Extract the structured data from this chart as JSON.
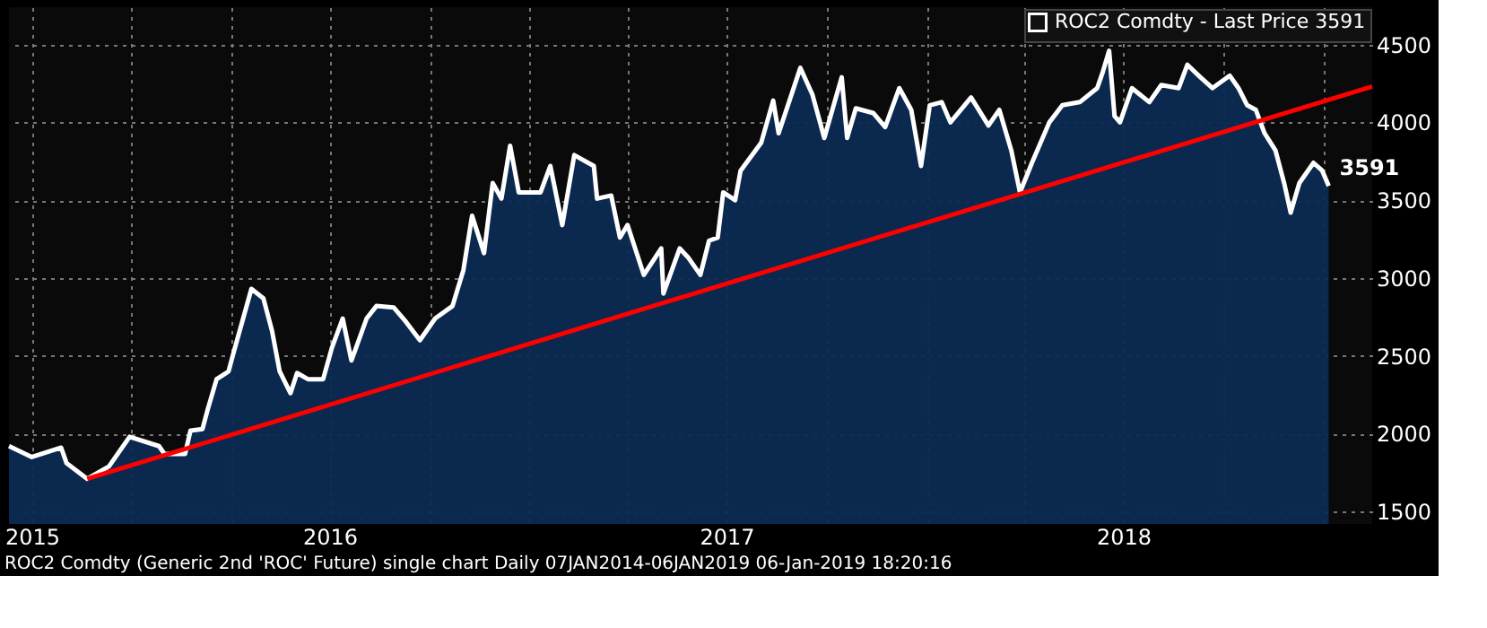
{
  "chart_data": {
    "type": "area",
    "xlim": [
      "2015-09-10",
      "2019-02-15"
    ],
    "ylim": [
      1420,
      4740
    ],
    "yticks": [
      1500,
      2000,
      2500,
      3000,
      3500,
      4000,
      4500
    ],
    "xticks": [
      {
        "value": "2015-10-01",
        "label": "2015"
      },
      {
        "value": "2016-01-01",
        "label": null
      },
      {
        "value": "2016-04-01",
        "label": null
      },
      {
        "value": "2016-07-01",
        "label": "2016"
      },
      {
        "value": "2016-10-01",
        "label": null
      },
      {
        "value": "2017-01-01",
        "label": null
      },
      {
        "value": "2017-04-01",
        "label": null
      },
      {
        "value": "2017-07-01",
        "label": "2017"
      },
      {
        "value": "2017-10-01",
        "label": null
      },
      {
        "value": "2018-01-01",
        "label": null
      },
      {
        "value": "2018-04-01",
        "label": null
      },
      {
        "value": "2018-07-01",
        "label": "2018"
      },
      {
        "value": "2018-10-01",
        "label": null
      },
      {
        "value": "2019-01-01",
        "label": null
      }
    ],
    "grid": true,
    "legend": "top right",
    "series": [
      {
        "name": "ROC2 Comdty - Last Price 3591",
        "color": "#ffffff",
        "x": [
          "2015-09-10",
          "2015-10-01",
          "2015-10-28",
          "2015-11-02",
          "2015-11-21",
          "2015-12-11",
          "2015-12-30",
          "2016-01-26",
          "2016-01-31",
          "2016-02-19",
          "2016-02-24",
          "2016-03-06",
          "2016-03-11",
          "2016-03-19",
          "2016-03-30",
          "2016-04-04",
          "2016-04-20",
          "2016-05-01",
          "2016-05-09",
          "2016-05-16",
          "2016-05-26",
          "2016-06-01",
          "2016-06-11",
          "2016-06-25",
          "2016-07-03",
          "2016-07-13",
          "2016-07-21",
          "2016-08-04",
          "2016-08-13",
          "2016-08-29",
          "2016-09-09",
          "2016-09-22",
          "2016-10-06",
          "2016-10-22",
          "2016-11-01",
          "2016-11-09",
          "2016-11-20",
          "2016-11-28",
          "2016-12-06",
          "2016-12-14",
          "2016-12-22",
          "2017-01-11",
          "2017-01-20",
          "2017-01-31",
          "2017-02-11",
          "2017-03-01",
          "2017-03-04",
          "2017-03-17",
          "2017-03-25",
          "2017-04-01",
          "2017-04-16",
          "2017-05-02",
          "2017-05-04",
          "2017-05-19",
          "2017-05-27",
          "2017-06-07",
          "2017-06-15",
          "2017-06-23",
          "2017-06-28",
          "2017-07-09",
          "2017-07-14",
          "2017-08-02",
          "2017-08-13",
          "2017-08-18",
          "2017-09-07",
          "2017-09-18",
          "2017-09-29",
          "2017-10-15",
          "2017-10-20",
          "2017-10-28",
          "2017-11-13",
          "2017-11-24",
          "2017-12-07",
          "2017-12-18",
          "2017-12-27",
          "2018-01-04",
          "2018-01-15",
          "2018-01-23",
          "2018-02-11",
          "2018-02-27",
          "2018-03-09",
          "2018-03-20",
          "2018-03-28",
          "2018-04-08",
          "2018-04-24",
          "2018-05-06",
          "2018-05-22",
          "2018-06-07",
          "2018-06-12",
          "2018-06-18",
          "2018-06-23",
          "2018-06-28",
          "2018-07-09",
          "2018-07-25",
          "2018-08-05",
          "2018-08-21",
          "2018-08-29",
          "2018-09-10",
          "2018-09-21",
          "2018-10-07",
          "2018-10-15",
          "2018-10-23",
          "2018-10-31",
          "2018-11-08",
          "2018-11-18",
          "2018-11-26",
          "2018-12-02",
          "2018-12-10",
          "2018-12-23",
          "2018-12-31",
          "2019-01-06"
        ],
        "values": [
          1920,
          1850,
          1910,
          1810,
          1710,
          1790,
          1980,
          1920,
          1870,
          1870,
          2020,
          2030,
          2160,
          2350,
          2400,
          2530,
          2930,
          2870,
          2660,
          2400,
          2260,
          2390,
          2350,
          2350,
          2550,
          2740,
          2470,
          2740,
          2820,
          2810,
          2720,
          2600,
          2740,
          2820,
          3050,
          3400,
          3160,
          3610,
          3510,
          3850,
          3550,
          3550,
          3720,
          3340,
          3790,
          3720,
          3510,
          3530,
          3260,
          3340,
          3020,
          3190,
          2900,
          3190,
          3130,
          3020,
          3240,
          3260,
          3550,
          3500,
          3690,
          3870,
          4140,
          3930,
          4350,
          4180,
          3900,
          4290,
          3900,
          4090,
          4060,
          3970,
          4220,
          4080,
          3720,
          4110,
          4130,
          4000,
          4160,
          3980,
          4080,
          3820,
          3550,
          3740,
          4000,
          4110,
          4130,
          4220,
          4320,
          4460,
          4040,
          4000,
          4220,
          4130,
          4240,
          4220,
          4370,
          4290,
          4220,
          4300,
          4220,
          4110,
          4080,
          3930,
          3820,
          3610,
          3420,
          3610,
          3740,
          3690,
          3591
        ]
      },
      {
        "type": "line",
        "color": "#ff0000",
        "x": [
          "2015-11-21",
          "2019-02-15"
        ],
        "values": [
          1710,
          4230
        ]
      }
    ],
    "annotations": [
      {
        "text": "3591",
        "x": "2019-01-06",
        "y": 3591
      },
      "ROC2 Comdty (Generic 2nd 'ROC' Future) single chart  Daily 07JAN2014-06JAN2019",
      "06-Jan-2019 18:20:16"
    ]
  }
}
